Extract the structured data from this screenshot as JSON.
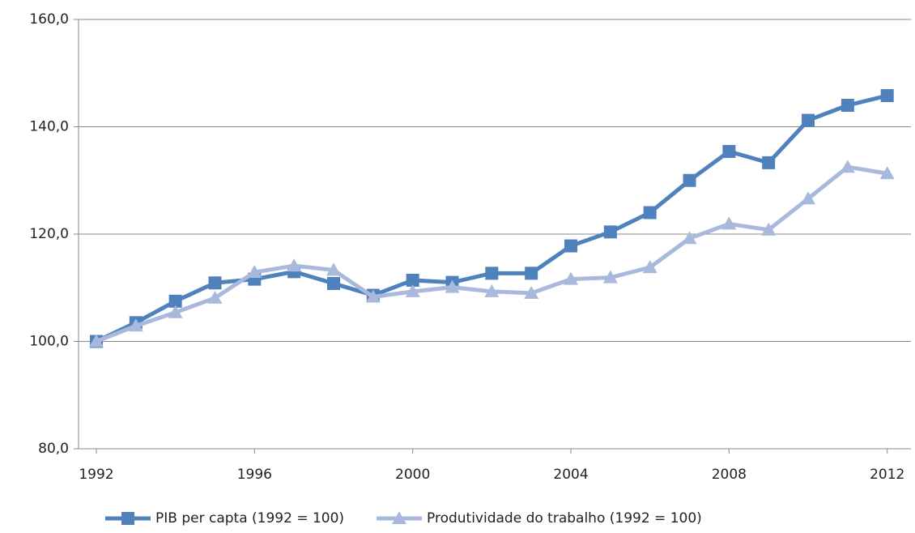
{
  "chart_data": {
    "type": "line",
    "x": [
      1992,
      1993,
      1994,
      1995,
      1996,
      1997,
      1998,
      1999,
      2000,
      2001,
      2002,
      2003,
      2004,
      2005,
      2006,
      2007,
      2008,
      2009,
      2010,
      2011,
      2012
    ],
    "series": [
      {
        "name": "PIB per capta (1992 = 100)",
        "color": "#4f81bd",
        "marker": "square",
        "values": [
          100,
          103.5,
          107.5,
          110.9,
          111.6,
          113,
          110.8,
          108.6,
          111.4,
          111,
          112.7,
          112.7,
          117.8,
          120.4,
          124,
          130,
          135.4,
          133.3,
          141.2,
          144,
          145.8
        ]
      },
      {
        "name": "Produtividade do trabalho (1992 = 100)",
        "color": "#a9b9dc",
        "marker": "triangle",
        "values": [
          100,
          102.9,
          105.4,
          108.1,
          112.9,
          114.1,
          113.3,
          108.3,
          109.3,
          110.1,
          109.3,
          109,
          111.6,
          111.9,
          113.8,
          119.2,
          121.9,
          120.8,
          126.6,
          132.5,
          131.3
        ]
      }
    ],
    "xlim": [
      1991.55,
      2012.6
    ],
    "xticks": [
      1992,
      1996,
      2000,
      2004,
      2008,
      2012
    ],
    "ylim": [
      80,
      160
    ],
    "yticks": [
      {
        "value": 80,
        "label": "80,0"
      },
      {
        "value": 100,
        "label": "100,0"
      },
      {
        "value": 120,
        "label": "120,0"
      },
      {
        "value": 140,
        "label": "140,0"
      },
      {
        "value": 160,
        "label": "160,0"
      }
    ],
    "grid": true,
    "legend": "bottom"
  }
}
